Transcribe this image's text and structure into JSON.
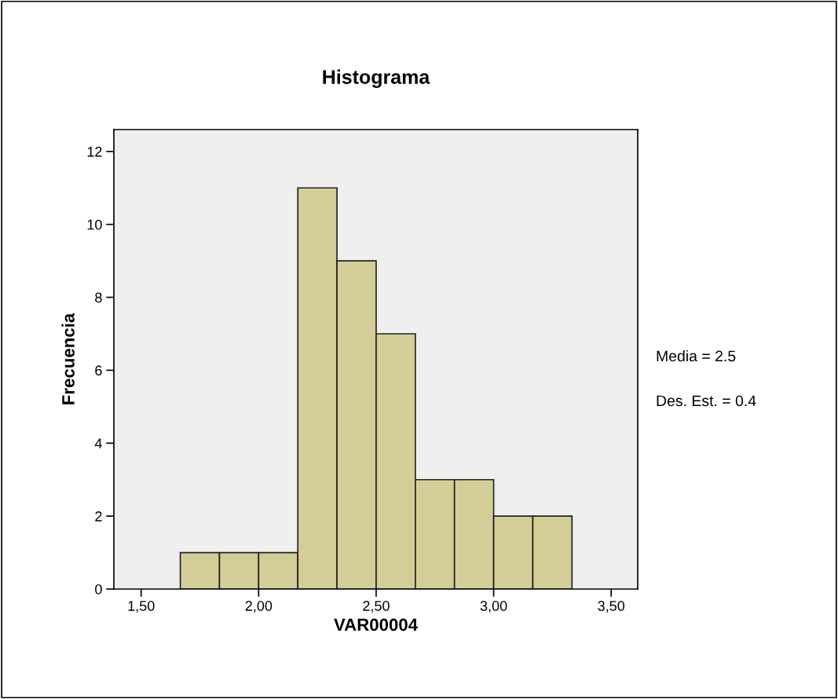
{
  "chart_data": {
    "type": "histogram",
    "title": "Histograma",
    "xlabel": "VAR00004",
    "ylabel": "Frecuencia",
    "bins": [
      1.6667,
      1.8333,
      2.0,
      2.1667,
      2.3333,
      2.5,
      2.6667,
      2.8333,
      3.0,
      3.1667,
      3.3333
    ],
    "values": [
      1,
      1,
      1,
      11,
      9,
      7,
      3,
      3,
      2,
      2
    ],
    "color": "#d3ce97",
    "xlim": [
      1.384,
      3.613
    ],
    "ylim": [
      0,
      12.6
    ],
    "xticks": [
      {
        "value": 1.5,
        "label": "1,50"
      },
      {
        "value": 2.0,
        "label": "2,00"
      },
      {
        "value": 2.5,
        "label": "2,50"
      },
      {
        "value": 3.0,
        "label": "3,00"
      },
      {
        "value": 3.5,
        "label": "3,50"
      }
    ],
    "yticks": [
      0,
      2,
      4,
      6,
      8,
      10,
      12
    ],
    "grid": false,
    "annotations": [
      "Media = 2.5",
      "Des. Est. = 0.4"
    ]
  }
}
